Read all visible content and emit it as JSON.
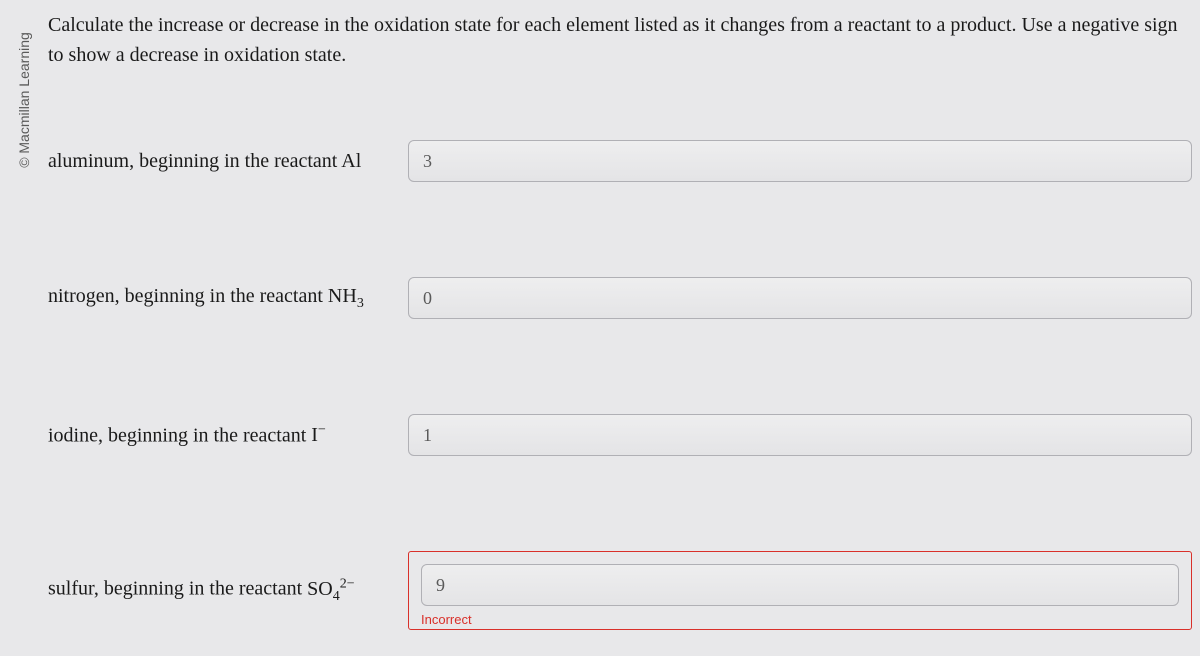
{
  "copyright": "© Macmillan Learning",
  "instructions": "Calculate the increase or decrease in the oxidation state for each element listed as it changes from a reactant to a product. Use a negative sign to show a decrease in oxidation state.",
  "questions": [
    {
      "label_prefix": "aluminum, beginning in the reactant ",
      "label_formula": "Al",
      "value": "3",
      "status": "neutral"
    },
    {
      "label_prefix": "nitrogen, beginning in the reactant ",
      "label_formula": "NH₃",
      "value": "0",
      "status": "neutral"
    },
    {
      "label_prefix": "iodine, beginning in the reactant ",
      "label_formula": "I⁻",
      "value": "1",
      "status": "neutral"
    },
    {
      "label_prefix": "sulfur, beginning in the reactant ",
      "label_formula": "SO₄²⁻",
      "value": "9",
      "status": "incorrect",
      "feedback": "Incorrect"
    }
  ],
  "colors": {
    "page_bg": "#e8e8ea",
    "text": "#1a1a1a",
    "field_border": "#b0b0b5",
    "field_bg_top": "#eeeeef",
    "field_bg_bottom": "#e4e4e6",
    "field_text": "#5a5a5a",
    "error": "#d9302a",
    "copyright_text": "#5a5a5a"
  }
}
